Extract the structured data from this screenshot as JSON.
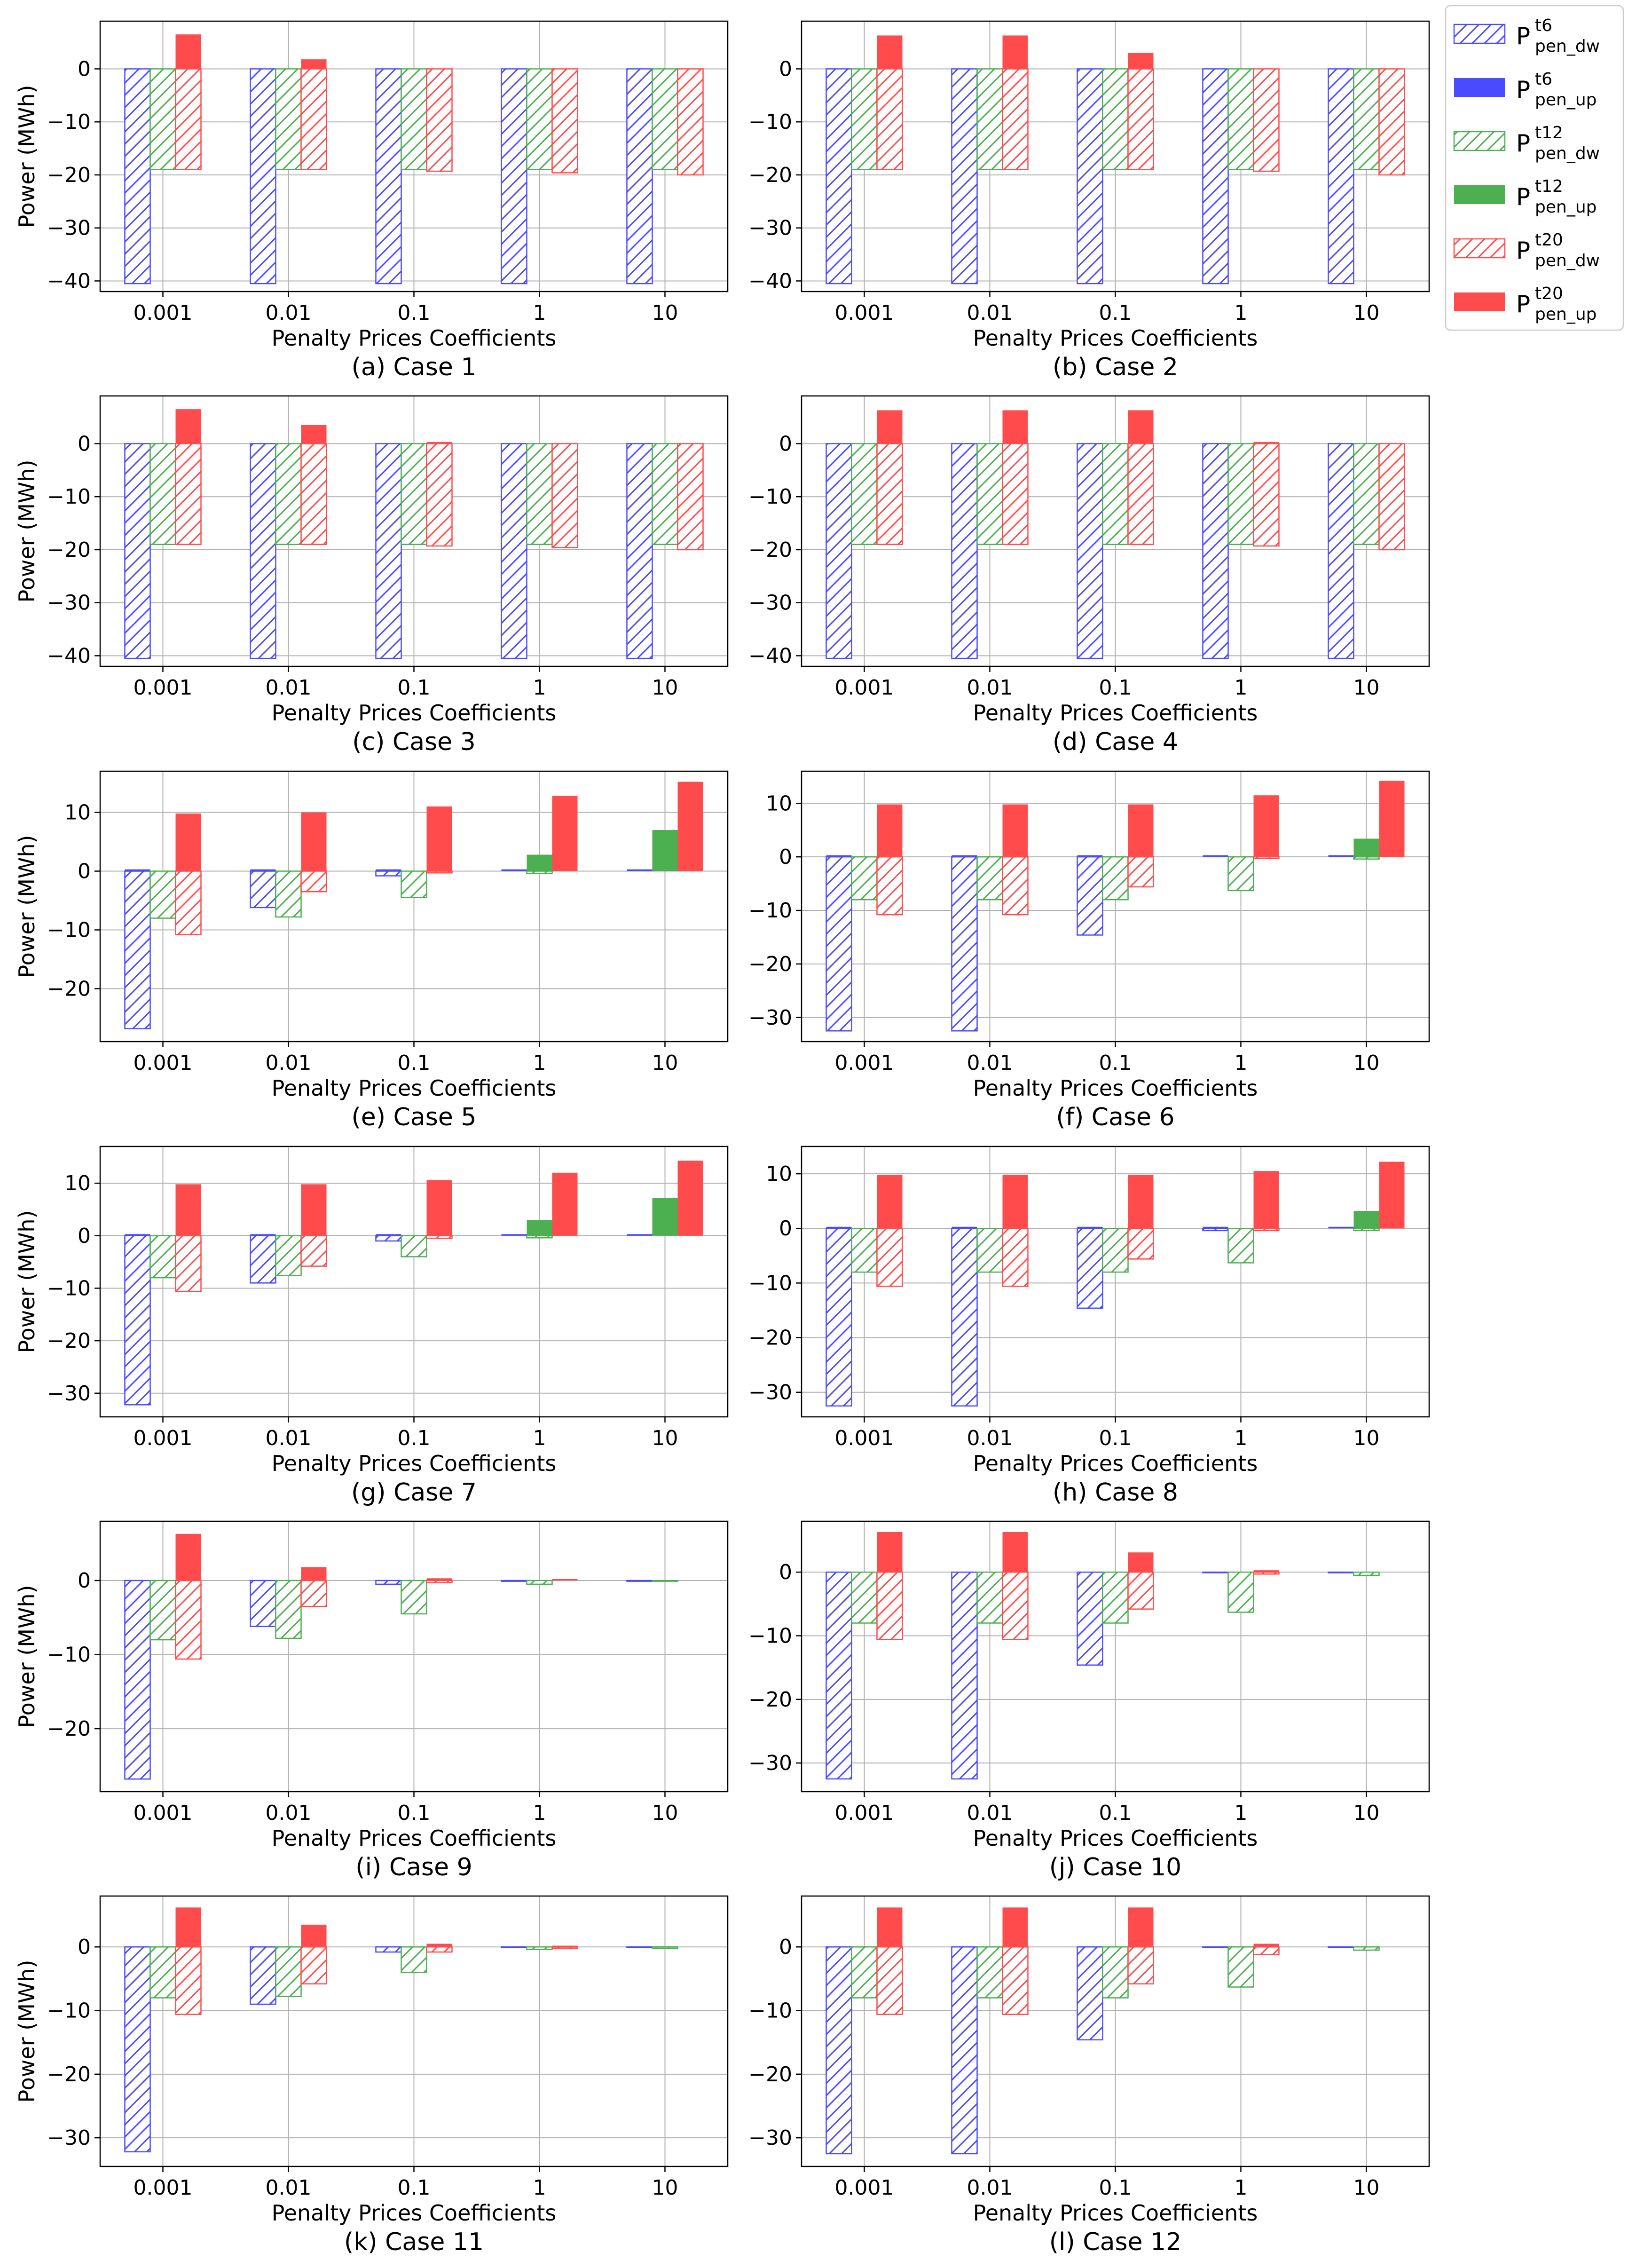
{
  "colors": {
    "t6": "#4a4aff",
    "t12": "#4caf50",
    "t20": "#ff4b4b",
    "grid": "#b0b0b0",
    "axis": "#000000"
  },
  "legend": {
    "items": [
      {
        "key": "t6",
        "kind": "dw",
        "base": "P",
        "sup": "t6",
        "sub": "pen_dw"
      },
      {
        "key": "t6",
        "kind": "up",
        "base": "P",
        "sup": "t6",
        "sub": "pen_up"
      },
      {
        "key": "t12",
        "kind": "dw",
        "base": "P",
        "sup": "t12",
        "sub": "pen_dw"
      },
      {
        "key": "t12",
        "kind": "up",
        "base": "P",
        "sup": "t12",
        "sub": "pen_up"
      },
      {
        "key": "t20",
        "kind": "dw",
        "base": "P",
        "sup": "t20",
        "sub": "pen_dw"
      },
      {
        "key": "t20",
        "kind": "up",
        "base": "P",
        "sup": "t20",
        "sub": "pen_up"
      }
    ]
  },
  "chart_data": [
    {
      "type": "bar",
      "caption": "(a) Case 1",
      "xlabel": "Penalty Prices Coefficients",
      "ylabel": "Power (MWh)",
      "categories": [
        "0.001",
        "0.01",
        "0.1",
        "1",
        "10"
      ],
      "ylim": [
        -42,
        9
      ],
      "yticks": [
        -40,
        -30,
        -20,
        -10,
        0
      ],
      "series": {
        "t6_dw": [
          -40.5,
          -40.5,
          -40.5,
          -40.5,
          -40.5
        ],
        "t6_up": [
          0,
          0,
          0,
          0,
          0
        ],
        "t12_dw": [
          -19,
          -19,
          -19,
          -19,
          -19
        ],
        "t12_up": [
          0,
          0,
          0,
          0,
          0
        ],
        "t20_dw": [
          -19,
          -19,
          -19.3,
          -19.6,
          -20
        ],
        "t20_up": [
          6.5,
          1.8,
          0,
          0,
          0
        ]
      }
    },
    {
      "type": "bar",
      "caption": "(b) Case 2",
      "xlabel": "Penalty Prices Coefficients",
      "ylabel": "",
      "categories": [
        "0.001",
        "0.01",
        "0.1",
        "1",
        "10"
      ],
      "ylim": [
        -42,
        9
      ],
      "yticks": [
        -40,
        -30,
        -20,
        -10,
        0
      ],
      "series": {
        "t6_dw": [
          -40.5,
          -40.5,
          -40.5,
          -40.5,
          -40.5
        ],
        "t6_up": [
          0,
          0,
          0,
          0,
          0
        ],
        "t12_dw": [
          -19,
          -19,
          -19,
          -19,
          -19
        ],
        "t12_up": [
          0,
          0,
          0,
          0,
          0
        ],
        "t20_dw": [
          -19,
          -19,
          -19,
          -19.3,
          -20
        ],
        "t20_up": [
          6.3,
          6.3,
          3.0,
          0,
          0
        ]
      }
    },
    {
      "type": "bar",
      "caption": "(c) Case 3",
      "xlabel": "Penalty Prices Coefficients",
      "ylabel": "Power (MWh)",
      "categories": [
        "0.001",
        "0.01",
        "0.1",
        "1",
        "10"
      ],
      "ylim": [
        -42,
        9
      ],
      "yticks": [
        -40,
        -30,
        -20,
        -10,
        0
      ],
      "series": {
        "t6_dw": [
          -40.5,
          -40.5,
          -40.5,
          -40.5,
          -40.5
        ],
        "t6_up": [
          0,
          0,
          0,
          0,
          0
        ],
        "t12_dw": [
          -19,
          -19,
          -19,
          -19,
          -19
        ],
        "t12_up": [
          0,
          0,
          0,
          0,
          0
        ],
        "t20_dw": [
          -19,
          -19,
          -19.3,
          -19.6,
          -20
        ],
        "t20_up": [
          6.5,
          3.5,
          0.3,
          0,
          0
        ]
      }
    },
    {
      "type": "bar",
      "caption": "(d) Case 4",
      "xlabel": "Penalty Prices Coefficients",
      "ylabel": "",
      "categories": [
        "0.001",
        "0.01",
        "0.1",
        "1",
        "10"
      ],
      "ylim": [
        -42,
        9
      ],
      "yticks": [
        -40,
        -30,
        -20,
        -10,
        0
      ],
      "series": {
        "t6_dw": [
          -40.5,
          -40.5,
          -40.5,
          -40.5,
          -40.5
        ],
        "t6_up": [
          0,
          0,
          0,
          0,
          0
        ],
        "t12_dw": [
          -19,
          -19,
          -19,
          -19,
          -19
        ],
        "t12_up": [
          0,
          0,
          0,
          0,
          0
        ],
        "t20_dw": [
          -19,
          -19,
          -19,
          -19.3,
          -20
        ],
        "t20_up": [
          6.3,
          6.3,
          6.3,
          0.3,
          0
        ]
      }
    },
    {
      "type": "bar",
      "caption": "(e) Case 5",
      "xlabel": "Penalty Prices Coefficients",
      "ylabel": "Power (MWh)",
      "categories": [
        "0.001",
        "0.01",
        "0.1",
        "1",
        "10"
      ],
      "ylim": [
        -29,
        17
      ],
      "yticks": [
        -20,
        -10,
        0,
        10
      ],
      "series": {
        "t6_dw": [
          -26.8,
          -6.2,
          -0.8,
          0,
          0
        ],
        "t6_up": [
          0.3,
          0.3,
          0.3,
          0.3,
          0.3
        ],
        "t12_dw": [
          -8,
          -7.8,
          -4.5,
          -0.4,
          0
        ],
        "t12_up": [
          0,
          0,
          0,
          2.8,
          7
        ],
        "t20_dw": [
          -10.8,
          -3.5,
          -0.3,
          0,
          0
        ],
        "t20_up": [
          9.8,
          10,
          11,
          12.8,
          15.2
        ]
      }
    },
    {
      "type": "bar",
      "caption": "(f) Case 6",
      "xlabel": "Penalty Prices Coefficients",
      "ylabel": "",
      "categories": [
        "0.001",
        "0.01",
        "0.1",
        "1",
        "10"
      ],
      "ylim": [
        -34.5,
        16
      ],
      "yticks": [
        -30,
        -20,
        -10,
        0,
        10
      ],
      "series": {
        "t6_dw": [
          -32.5,
          -32.5,
          -14.6,
          0,
          0
        ],
        "t6_up": [
          0.3,
          0.3,
          0.3,
          0.3,
          0.3
        ],
        "t12_dw": [
          -8,
          -8,
          -8,
          -6.3,
          -0.4
        ],
        "t12_up": [
          0,
          0,
          0,
          0,
          3.4
        ],
        "t20_dw": [
          -10.8,
          -10.8,
          -5.6,
          -0.3,
          0
        ],
        "t20_up": [
          9.8,
          9.8,
          9.8,
          11.5,
          14.2
        ]
      }
    },
    {
      "type": "bar",
      "caption": "(g) Case 7",
      "xlabel": "Penalty Prices Coefficients",
      "ylabel": "Power (MWh)",
      "categories": [
        "0.001",
        "0.01",
        "0.1",
        "1",
        "10"
      ],
      "ylim": [
        -34.5,
        17
      ],
      "yticks": [
        -30,
        -20,
        -10,
        0,
        10
      ],
      "series": {
        "t6_dw": [
          -32.2,
          -9,
          -1,
          0,
          0
        ],
        "t6_up": [
          0.3,
          0.3,
          0.3,
          0.3,
          0.3
        ],
        "t12_dw": [
          -8,
          -7.6,
          -4,
          -0.4,
          0
        ],
        "t12_up": [
          0,
          0,
          0,
          3,
          7.2
        ],
        "t20_dw": [
          -10.6,
          -5.8,
          -0.5,
          0,
          0
        ],
        "t20_up": [
          9.8,
          9.8,
          10.6,
          12,
          14.3
        ]
      }
    },
    {
      "type": "bar",
      "caption": "(h) Case 8",
      "xlabel": "Penalty Prices Coefficients",
      "ylabel": "",
      "categories": [
        "0.001",
        "0.01",
        "0.1",
        "1",
        "10"
      ],
      "ylim": [
        -34.5,
        15
      ],
      "yticks": [
        -30,
        -20,
        -10,
        0,
        10
      ],
      "series": {
        "t6_dw": [
          -32.5,
          -32.5,
          -14.6,
          -0.4,
          0
        ],
        "t6_up": [
          0.3,
          0.3,
          0.3,
          0.3,
          0.3
        ],
        "t12_dw": [
          -8,
          -8,
          -8,
          -6.3,
          -0.4
        ],
        "t12_up": [
          0,
          0,
          0,
          0,
          3.2
        ],
        "t20_dw": [
          -10.6,
          -10.6,
          -5.6,
          -0.4,
          0
        ],
        "t20_up": [
          9.8,
          9.8,
          9.8,
          10.5,
          12.2
        ]
      }
    },
    {
      "type": "bar",
      "caption": "(i) Case 9",
      "xlabel": "Penalty Prices Coefficients",
      "ylabel": "Power (MWh)",
      "categories": [
        "0.001",
        "0.01",
        "0.1",
        "1",
        "10"
      ],
      "ylim": [
        -28.5,
        8
      ],
      "yticks": [
        -20,
        -10,
        0
      ],
      "series": {
        "t6_dw": [
          -26.8,
          -6.2,
          -0.5,
          -0.1,
          -0.1
        ],
        "t6_up": [
          0,
          0,
          0,
          0,
          0
        ],
        "t12_dw": [
          -8,
          -7.8,
          -4.5,
          -0.5,
          -0.1
        ],
        "t12_up": [
          0,
          0,
          0,
          0,
          0
        ],
        "t20_dw": [
          -10.6,
          -3.5,
          -0.3,
          0,
          0
        ],
        "t20_up": [
          6.3,
          1.8,
          0.3,
          0.2,
          0
        ]
      }
    },
    {
      "type": "bar",
      "caption": "(j) Case 10",
      "xlabel": "Penalty Prices Coefficients",
      "ylabel": "",
      "categories": [
        "0.001",
        "0.01",
        "0.1",
        "1",
        "10"
      ],
      "ylim": [
        -34.5,
        8
      ],
      "yticks": [
        -30,
        -20,
        -10,
        0
      ],
      "series": {
        "t6_dw": [
          -32.5,
          -32.5,
          -14.6,
          -0.1,
          -0.1
        ],
        "t6_up": [
          0,
          0,
          0,
          0,
          0
        ],
        "t12_dw": [
          -8,
          -8,
          -8,
          -6.3,
          -0.5
        ],
        "t12_up": [
          0,
          0,
          0,
          0,
          0
        ],
        "t20_dw": [
          -10.6,
          -10.6,
          -5.8,
          -0.3,
          0
        ],
        "t20_up": [
          6.3,
          6.3,
          3.1,
          0.3,
          0
        ]
      }
    },
    {
      "type": "bar",
      "caption": "(k) Case 11",
      "xlabel": "Penalty Prices Coefficients",
      "ylabel": "Power (MWh)",
      "categories": [
        "0.001",
        "0.01",
        "0.1",
        "1",
        "10"
      ],
      "ylim": [
        -34.5,
        8
      ],
      "yticks": [
        -30,
        -20,
        -10,
        0
      ],
      "series": {
        "t6_dw": [
          -32.2,
          -9,
          -0.8,
          -0.1,
          -0.1
        ],
        "t6_up": [
          0,
          0,
          0,
          0,
          0
        ],
        "t12_dw": [
          -8,
          -7.8,
          -4,
          -0.4,
          -0.2
        ],
        "t12_up": [
          0,
          0,
          0,
          0,
          0
        ],
        "t20_dw": [
          -10.6,
          -5.8,
          -0.8,
          -0.2,
          0
        ],
        "t20_up": [
          6.2,
          3.5,
          0.5,
          0.2,
          0
        ]
      }
    },
    {
      "type": "bar",
      "caption": "(l) Case 12",
      "xlabel": "Penalty Prices Coefficients",
      "ylabel": "",
      "categories": [
        "0.001",
        "0.01",
        "0.1",
        "1",
        "10"
      ],
      "ylim": [
        -34.5,
        8
      ],
      "yticks": [
        -30,
        -20,
        -10,
        0
      ],
      "series": {
        "t6_dw": [
          -32.5,
          -32.5,
          -14.6,
          -0.1,
          -0.1
        ],
        "t6_up": [
          0,
          0,
          0,
          0,
          0
        ],
        "t12_dw": [
          -8,
          -8,
          -8,
          -6.3,
          -0.5
        ],
        "t12_up": [
          0,
          0,
          0,
          0,
          0
        ],
        "t20_dw": [
          -10.6,
          -10.6,
          -5.8,
          -1.2,
          0
        ],
        "t20_up": [
          6.2,
          6.2,
          6.2,
          0.5,
          0
        ]
      }
    }
  ]
}
